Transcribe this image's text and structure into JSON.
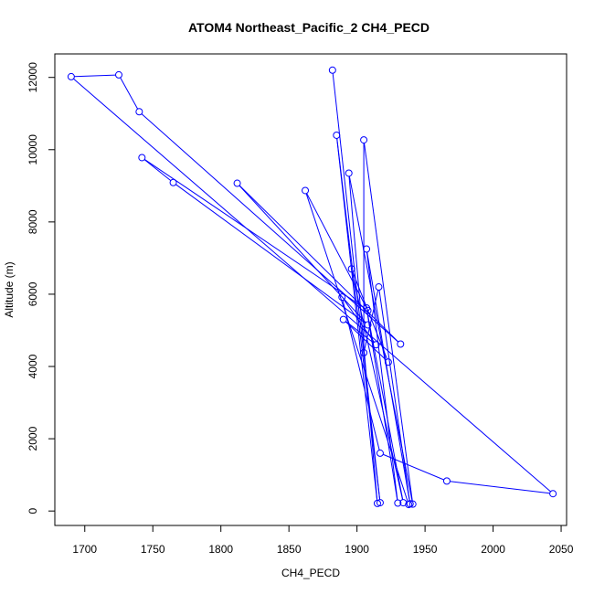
{
  "chart_data": {
    "type": "line",
    "title": "ATOM4 Northeast_Pacific_2 CH4_PECD",
    "xlabel": "CH4_PECD",
    "ylabel": "Altitude (m)",
    "xlim": [
      1678,
      2054
    ],
    "ylim": [
      -400,
      12650
    ],
    "x_ticks": [
      1700,
      1750,
      1800,
      1850,
      1900,
      1950,
      2000,
      2050
    ],
    "y_ticks": [
      0,
      2000,
      4000,
      6000,
      8000,
      10000,
      12000
    ],
    "series_color": "#0000ff",
    "marker": "open-circle",
    "grid": false,
    "legend": "none",
    "points": [
      {
        "x": 1882,
        "y": 12200
      },
      {
        "x": 1917,
        "y": 230
      },
      {
        "x": 1885,
        "y": 10400
      },
      {
        "x": 1915,
        "y": 210
      },
      {
        "x": 1894,
        "y": 9350
      },
      {
        "x": 1941,
        "y": 190
      },
      {
        "x": 1905,
        "y": 10270
      },
      {
        "x": 1905,
        "y": 4380
      },
      {
        "x": 1916,
        "y": 6200
      },
      {
        "x": 1939,
        "y": 200
      },
      {
        "x": 1907,
        "y": 7250
      },
      {
        "x": 1930,
        "y": 220
      },
      {
        "x": 1907,
        "y": 5620
      },
      {
        "x": 1934,
        "y": 230
      },
      {
        "x": 1896,
        "y": 6700
      },
      {
        "x": 1923,
        "y": 4120
      },
      {
        "x": 1890,
        "y": 5300
      },
      {
        "x": 1914,
        "y": 4600
      },
      {
        "x": 1889,
        "y": 5920
      },
      {
        "x": 1917,
        "y": 1600
      },
      {
        "x": 1966,
        "y": 830
      },
      {
        "x": 2044,
        "y": 480
      },
      {
        "x": 1690,
        "y": 12020
      },
      {
        "x": 1725,
        "y": 12070
      },
      {
        "x": 1740,
        "y": 11050
      },
      {
        "x": 1932,
        "y": 4620
      },
      {
        "x": 1812,
        "y": 9070
      },
      {
        "x": 1908,
        "y": 5150
      },
      {
        "x": 1765,
        "y": 9090
      },
      {
        "x": 1742,
        "y": 9780
      },
      {
        "x": 1908,
        "y": 5550
      },
      {
        "x": 1862,
        "y": 8870
      },
      {
        "x": 1938,
        "y": 180
      }
    ]
  }
}
